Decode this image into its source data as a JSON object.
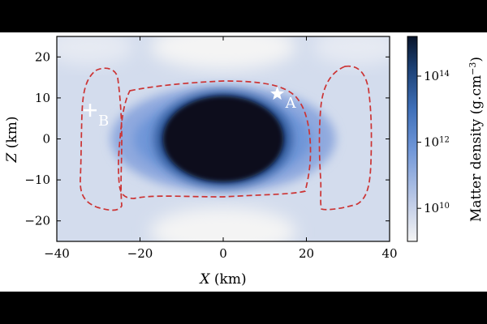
{
  "chart_data": {
    "type": "heatmap",
    "xlabel_var": "X",
    "xlabel_unit": "(km)",
    "ylabel_var": "Z",
    "ylabel_unit": "(km)",
    "xlim": [
      -40,
      40
    ],
    "ylim": [
      -25,
      25
    ],
    "x_ticks": [
      "−40",
      "−20",
      "0",
      "20",
      "40"
    ],
    "x_tick_values": [
      -40,
      -20,
      0,
      20,
      40
    ],
    "y_ticks": [
      "20",
      "10",
      "0",
      "−10",
      "−20"
    ],
    "y_tick_values": [
      20,
      10,
      0,
      -10,
      -20
    ],
    "colorbar": {
      "label": "Matter density (g.cm",
      "label_exp": "−3",
      "label_close": ")",
      "scale": "log",
      "range": [
        9.0,
        15.2
      ],
      "tick_base": "10",
      "ticks": [
        {
          "exp": "10",
          "value": 10
        },
        {
          "exp": "12",
          "value": 12
        },
        {
          "exp": "14",
          "value": 14
        }
      ],
      "colors": [
        "#f4f4f4",
        "#bcc9e6",
        "#6f96d8",
        "#3e6fb8",
        "#1b3f72",
        "#08142a"
      ]
    },
    "markers": [
      {
        "label": "A",
        "symbol": "star",
        "x": 13,
        "z": 11
      },
      {
        "label": "B",
        "symbol": "plus",
        "x": -32,
        "z": 7
      }
    ],
    "contour_color": "#cc3333",
    "core": {
      "rx_km": 14.5,
      "rz_km": 10.5
    },
    "dense_region": {
      "rx_km": 27,
      "rz_km": 13
    }
  }
}
